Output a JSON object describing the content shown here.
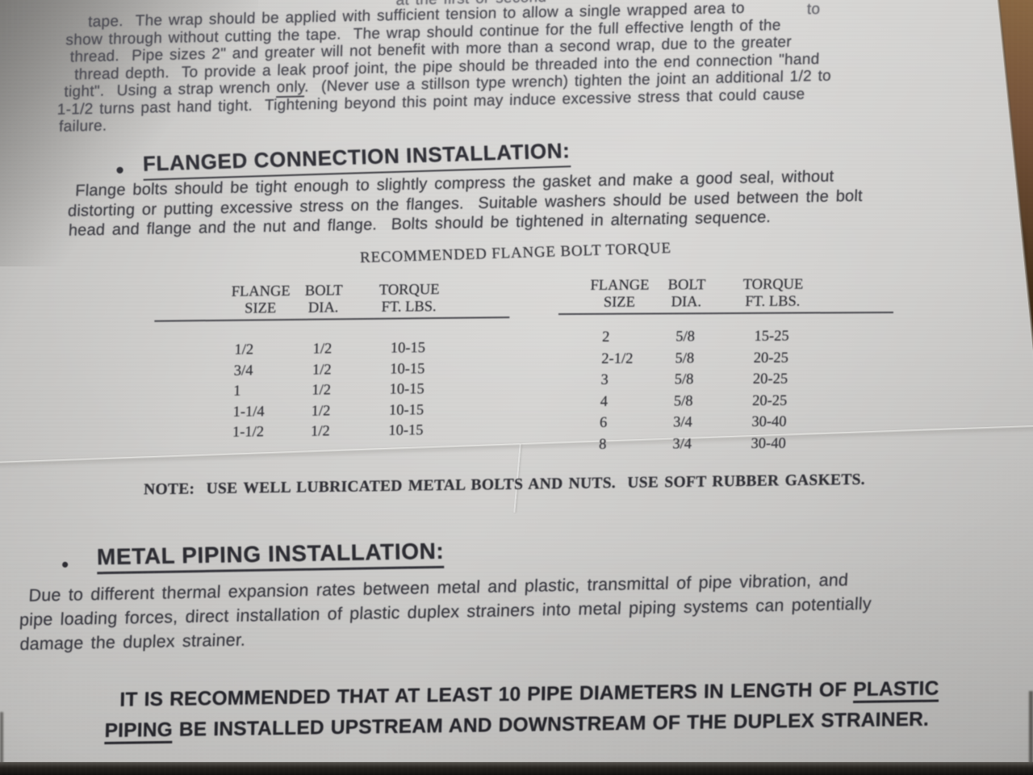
{
  "photo": {
    "bullet_glyph": "•",
    "paper_color": "#d3d2d0",
    "ink_color": "#3c3c42",
    "wood_color": "#6f5136",
    "shadow_strip_color": "#171614"
  },
  "top_paragraph": {
    "frag_left": "at the first or second",
    "frag_right": "a single wrapped area to",
    "l1": "tape.  The wrap should be applied with sufficient tension to allow a single wrapped area to",
    "l2": "show through without cutting the tape.  The wrap should continue for the full effective length of the",
    "l3": "thread.  Pipe sizes 2\" and greater will not benefit with more than a second wrap, due to the greater",
    "l4": "thread depth.  To provide a leak proof joint, the pipe should be threaded into the end connection \"hand",
    "l5_pre": "tight\".  Using a strap wrench ",
    "l5_u": "only",
    "l5_post": ".  (Never use a stillson type wrench) tighten the joint an additional 1/2 to",
    "l6": "1-1/2 turns past hand tight.  Tightening beyond this point may induce excessive stress that could cause",
    "l7": "failure."
  },
  "flanged_section": {
    "heading": "FLANGED CONNECTION INSTALLATION:",
    "l1": "Flange bolts should be tight enough to slightly compress the gasket and make a good seal, without",
    "l2": "distorting or putting excessive stress on the flanges.  Suitable washers should be used between the bolt",
    "l3": "head and flange and the nut and flange.  Bolts should be tightened in alternating sequence."
  },
  "torque_table": {
    "title": "RECOMMENDED FLANGE BOLT TORQUE",
    "header_row1": [
      "FLANGE",
      "BOLT",
      "TORQUE"
    ],
    "header_row2": [
      "SIZE",
      "DIA.",
      "FT. LBS."
    ],
    "left_rows": [
      [
        "1/2",
        "1/2",
        "10-15"
      ],
      [
        "3/4",
        "1/2",
        "10-15"
      ],
      [
        "1",
        "1/2",
        "10-15"
      ],
      [
        "1-1/4",
        "1/2",
        "10-15"
      ],
      [
        "1-1/2",
        "1/2",
        "10-15"
      ]
    ],
    "right_rows": [
      [
        "2",
        "5/8",
        "15-25"
      ],
      [
        "2-1/2",
        "5/8",
        "20-25"
      ],
      [
        "3",
        "5/8",
        "20-25"
      ],
      [
        "4",
        "5/8",
        "20-25"
      ],
      [
        "6",
        "3/4",
        "30-40"
      ],
      [
        "8",
        "3/4",
        "30-40"
      ]
    ]
  },
  "note_line": "NOTE:  USE WELL LUBRICATED METAL BOLTS AND NUTS.  USE SOFT RUBBER GASKETS.",
  "metal_section": {
    "heading": "METAL PIPING INSTALLATION:",
    "l1": "Due to different thermal expansion rates between metal and plastic, transmittal of pipe vibration, and",
    "l2": "pipe loading forces, direct installation of plastic duplex strainers into metal piping systems can potentially",
    "l3": "damage the duplex strainer."
  },
  "recommendation": {
    "line1_pre": "IT IS RECOMMENDED THAT AT LEAST 10 PIPE DIAMETERS IN LENGTH OF ",
    "line1_underline": "PLASTIC",
    "line2_underline": "PIPING",
    "line2_post": " BE INSTALLED UPSTREAM AND DOWNSTREAM OF THE DUPLEX STRAINER."
  }
}
